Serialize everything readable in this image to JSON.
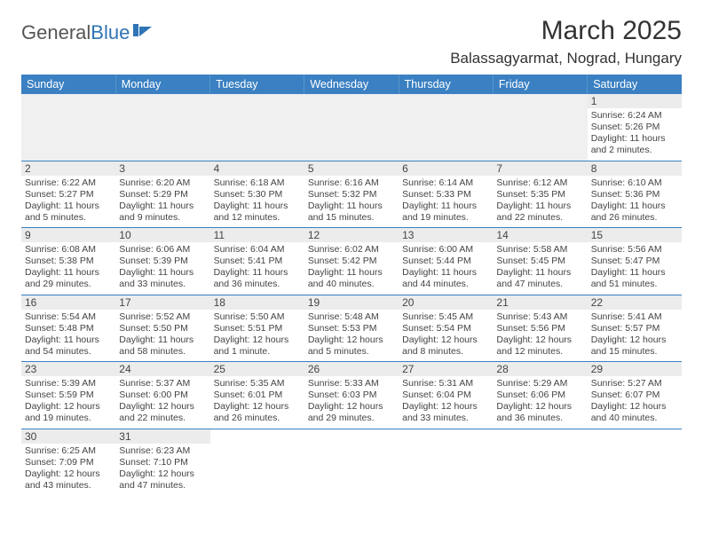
{
  "brand": {
    "name1": "General",
    "name2": "Blue"
  },
  "title": "March 2025",
  "location": "Balassagyarmat, Nograd, Hungary",
  "colors": {
    "header_bg": "#3a80c2",
    "header_text": "#ffffff",
    "daynum_bg": "#ececec",
    "border": "#3a80c2",
    "logo_blue": "#2f74b5"
  },
  "day_names": [
    "Sunday",
    "Monday",
    "Tuesday",
    "Wednesday",
    "Thursday",
    "Friday",
    "Saturday"
  ],
  "weeks": [
    [
      null,
      null,
      null,
      null,
      null,
      null,
      {
        "n": "1",
        "sr": "6:24 AM",
        "ss": "5:26 PM",
        "dl": "11 hours and 2 minutes."
      }
    ],
    [
      {
        "n": "2",
        "sr": "6:22 AM",
        "ss": "5:27 PM",
        "dl": "11 hours and 5 minutes."
      },
      {
        "n": "3",
        "sr": "6:20 AM",
        "ss": "5:29 PM",
        "dl": "11 hours and 9 minutes."
      },
      {
        "n": "4",
        "sr": "6:18 AM",
        "ss": "5:30 PM",
        "dl": "11 hours and 12 minutes."
      },
      {
        "n": "5",
        "sr": "6:16 AM",
        "ss": "5:32 PM",
        "dl": "11 hours and 15 minutes."
      },
      {
        "n": "6",
        "sr": "6:14 AM",
        "ss": "5:33 PM",
        "dl": "11 hours and 19 minutes."
      },
      {
        "n": "7",
        "sr": "6:12 AM",
        "ss": "5:35 PM",
        "dl": "11 hours and 22 minutes."
      },
      {
        "n": "8",
        "sr": "6:10 AM",
        "ss": "5:36 PM",
        "dl": "11 hours and 26 minutes."
      }
    ],
    [
      {
        "n": "9",
        "sr": "6:08 AM",
        "ss": "5:38 PM",
        "dl": "11 hours and 29 minutes."
      },
      {
        "n": "10",
        "sr": "6:06 AM",
        "ss": "5:39 PM",
        "dl": "11 hours and 33 minutes."
      },
      {
        "n": "11",
        "sr": "6:04 AM",
        "ss": "5:41 PM",
        "dl": "11 hours and 36 minutes."
      },
      {
        "n": "12",
        "sr": "6:02 AM",
        "ss": "5:42 PM",
        "dl": "11 hours and 40 minutes."
      },
      {
        "n": "13",
        "sr": "6:00 AM",
        "ss": "5:44 PM",
        "dl": "11 hours and 44 minutes."
      },
      {
        "n": "14",
        "sr": "5:58 AM",
        "ss": "5:45 PM",
        "dl": "11 hours and 47 minutes."
      },
      {
        "n": "15",
        "sr": "5:56 AM",
        "ss": "5:47 PM",
        "dl": "11 hours and 51 minutes."
      }
    ],
    [
      {
        "n": "16",
        "sr": "5:54 AM",
        "ss": "5:48 PM",
        "dl": "11 hours and 54 minutes."
      },
      {
        "n": "17",
        "sr": "5:52 AM",
        "ss": "5:50 PM",
        "dl": "11 hours and 58 minutes."
      },
      {
        "n": "18",
        "sr": "5:50 AM",
        "ss": "5:51 PM",
        "dl": "12 hours and 1 minute."
      },
      {
        "n": "19",
        "sr": "5:48 AM",
        "ss": "5:53 PM",
        "dl": "12 hours and 5 minutes."
      },
      {
        "n": "20",
        "sr": "5:45 AM",
        "ss": "5:54 PM",
        "dl": "12 hours and 8 minutes."
      },
      {
        "n": "21",
        "sr": "5:43 AM",
        "ss": "5:56 PM",
        "dl": "12 hours and 12 minutes."
      },
      {
        "n": "22",
        "sr": "5:41 AM",
        "ss": "5:57 PM",
        "dl": "12 hours and 15 minutes."
      }
    ],
    [
      {
        "n": "23",
        "sr": "5:39 AM",
        "ss": "5:59 PM",
        "dl": "12 hours and 19 minutes."
      },
      {
        "n": "24",
        "sr": "5:37 AM",
        "ss": "6:00 PM",
        "dl": "12 hours and 22 minutes."
      },
      {
        "n": "25",
        "sr": "5:35 AM",
        "ss": "6:01 PM",
        "dl": "12 hours and 26 minutes."
      },
      {
        "n": "26",
        "sr": "5:33 AM",
        "ss": "6:03 PM",
        "dl": "12 hours and 29 minutes."
      },
      {
        "n": "27",
        "sr": "5:31 AM",
        "ss": "6:04 PM",
        "dl": "12 hours and 33 minutes."
      },
      {
        "n": "28",
        "sr": "5:29 AM",
        "ss": "6:06 PM",
        "dl": "12 hours and 36 minutes."
      },
      {
        "n": "29",
        "sr": "5:27 AM",
        "ss": "6:07 PM",
        "dl": "12 hours and 40 minutes."
      }
    ],
    [
      {
        "n": "30",
        "sr": "6:25 AM",
        "ss": "7:09 PM",
        "dl": "12 hours and 43 minutes."
      },
      {
        "n": "31",
        "sr": "6:23 AM",
        "ss": "7:10 PM",
        "dl": "12 hours and 47 minutes."
      },
      null,
      null,
      null,
      null,
      null
    ]
  ],
  "labels": {
    "sunrise": "Sunrise:",
    "sunset": "Sunset:",
    "daylight": "Daylight:"
  }
}
